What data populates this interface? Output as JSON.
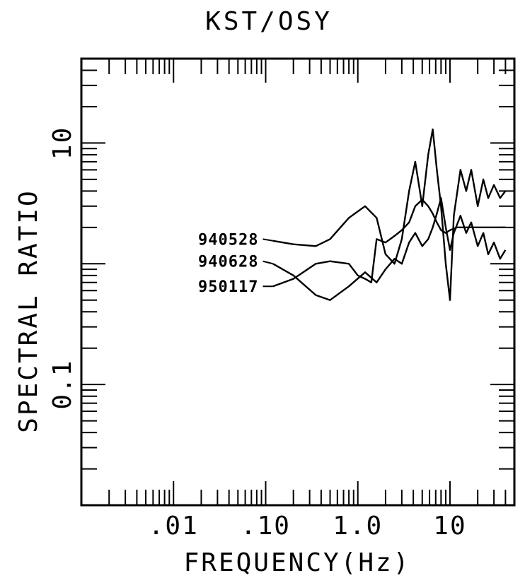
{
  "chart_data": {
    "type": "line",
    "title": "KST/OSY",
    "xlabel": "FREQUENCY(Hz)",
    "ylabel": "SPECTRAL RATIO",
    "x_scale": "log",
    "y_scale": "log",
    "xlim": [
      0.001,
      50
    ],
    "ylim": [
      0.01,
      50
    ],
    "x_tick_labels": [
      {
        "value": 0.01,
        "label": ".01"
      },
      {
        "value": 0.1,
        "label": ".10"
      },
      {
        "value": 1,
        "label": "1.0"
      },
      {
        "value": 10,
        "label": "10"
      }
    ],
    "y_tick_labels": [
      {
        "value": 10,
        "label": "10"
      },
      {
        "value": 0.1,
        "label": "0.1"
      }
    ],
    "grid": false,
    "series": [
      {
        "name": "940528",
        "label_anchor": [
          0.1,
          1.6
        ],
        "points": [
          [
            0.12,
            1.55
          ],
          [
            0.2,
            1.45
          ],
          [
            0.35,
            1.4
          ],
          [
            0.5,
            1.6
          ],
          [
            0.8,
            2.4
          ],
          [
            1.2,
            3.0
          ],
          [
            1.6,
            2.4
          ],
          [
            2.0,
            1.2
          ],
          [
            2.5,
            1.0
          ],
          [
            3.0,
            1.6
          ],
          [
            3.6,
            4.0
          ],
          [
            4.2,
            7.0
          ],
          [
            5.0,
            3.0
          ],
          [
            5.8,
            8.0
          ],
          [
            6.5,
            13.0
          ],
          [
            7.2,
            6.0
          ],
          [
            8.0,
            3.0
          ],
          [
            9.0,
            1.0
          ],
          [
            10,
            0.5
          ],
          [
            11,
            2.5
          ],
          [
            13,
            6.0
          ],
          [
            15,
            4.0
          ],
          [
            17,
            6.0
          ],
          [
            20,
            3.0
          ],
          [
            23,
            5.0
          ],
          [
            26,
            3.5
          ],
          [
            30,
            4.5
          ],
          [
            35,
            3.5
          ],
          [
            40,
            4.0
          ]
        ]
      },
      {
        "name": "940628",
        "label_anchor": [
          0.1,
          1.05
        ],
        "points": [
          [
            0.12,
            1.0
          ],
          [
            0.2,
            0.8
          ],
          [
            0.35,
            0.55
          ],
          [
            0.5,
            0.5
          ],
          [
            0.8,
            0.65
          ],
          [
            1.2,
            0.85
          ],
          [
            1.6,
            0.7
          ],
          [
            2.0,
            0.9
          ],
          [
            2.5,
            1.1
          ],
          [
            3.0,
            1.0
          ],
          [
            3.6,
            1.5
          ],
          [
            4.2,
            1.8
          ],
          [
            5.0,
            1.4
          ],
          [
            5.8,
            1.6
          ],
          [
            6.5,
            2.0
          ],
          [
            7.2,
            2.6
          ],
          [
            8.0,
            3.5
          ],
          [
            9.0,
            2.0
          ],
          [
            10,
            1.3
          ],
          [
            11,
            1.8
          ],
          [
            13,
            2.5
          ],
          [
            15,
            1.8
          ],
          [
            17,
            2.2
          ],
          [
            20,
            1.4
          ],
          [
            23,
            1.8
          ],
          [
            26,
            1.2
          ],
          [
            30,
            1.5
          ],
          [
            35,
            1.1
          ],
          [
            40,
            1.3
          ]
        ]
      },
      {
        "name": "950117",
        "label_anchor": [
          0.1,
          0.65
        ],
        "points": [
          [
            0.12,
            0.65
          ],
          [
            0.2,
            0.75
          ],
          [
            0.35,
            1.0
          ],
          [
            0.5,
            1.05
          ],
          [
            0.8,
            1.0
          ],
          [
            1.0,
            0.8
          ],
          [
            1.2,
            0.75
          ],
          [
            1.4,
            0.7
          ],
          [
            1.6,
            1.6
          ],
          [
            2.0,
            1.5
          ],
          [
            2.5,
            1.7
          ],
          [
            3.0,
            1.9
          ],
          [
            3.6,
            2.2
          ],
          [
            4.2,
            3.0
          ],
          [
            5.0,
            3.4
          ],
          [
            5.8,
            3.0
          ],
          [
            6.5,
            2.6
          ],
          [
            7.2,
            2.2
          ],
          [
            8.0,
            1.9
          ],
          [
            9.0,
            1.8
          ],
          [
            10,
            1.9
          ],
          [
            12,
            2.0
          ],
          [
            15,
            2.0
          ],
          [
            20,
            2.0
          ],
          [
            30,
            2.0
          ],
          [
            40,
            2.0
          ]
        ]
      }
    ]
  }
}
